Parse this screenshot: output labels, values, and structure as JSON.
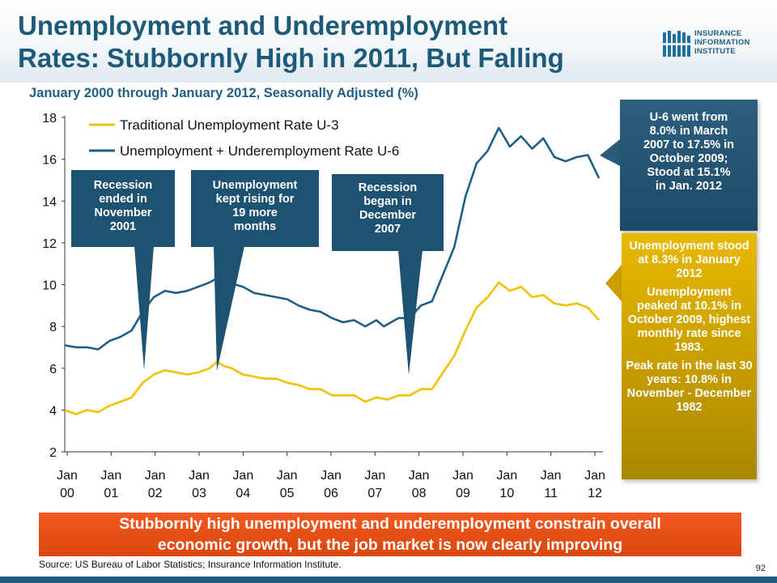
{
  "slide": {
    "title_line1": "Unemployment and Underemployment",
    "title_line2": "Rates: Stubbornly High in 2011, But Falling",
    "subtitle": "January 2000 through January 2012, Seasonally Adjusted (%)",
    "logo": {
      "line1": "INSURANCE",
      "line2": "INFORMATION",
      "line3": "INSTITUTE"
    },
    "banner_line1": "Stubbornly high unemployment and underemployment constrain overall",
    "banner_line2": "economic growth, but the job market is now clearly improving",
    "source": "Source: US Bureau of Labor Statistics; Insurance Information Institute.",
    "page_number": "92"
  },
  "callouts": {
    "recession2001": {
      "l1": "Recession",
      "l2": "ended in",
      "l3": "November",
      "l4": "2001"
    },
    "rising": {
      "l1": "Unemployment",
      "l2": "kept rising for",
      "l3": "19 more",
      "l4": "months"
    },
    "recession2007": {
      "l1": "Recession",
      "l2": "began in",
      "l3": "December",
      "l4": "2007"
    },
    "u6note": {
      "l1": "U-6 went from",
      "l2": "8.0% in March",
      "l3": "2007 to 17.5% in",
      "l4": "October 2009;",
      "l5": "Stood at 15.1%",
      "l6": "in Jan. 2012"
    },
    "u3note": {
      "p1": "Unemployment stood at 8.3% in January 2012",
      "p2": "Unemployment peaked at 10.1% in October 2009, highest monthly rate since 1983.",
      "p3": "Peak rate in the last 30 years: 10.8% in November - December 1982"
    }
  },
  "colors": {
    "u3": "#f2c100",
    "u6": "#1f5f85",
    "callout_blue": "#1e5272",
    "banner": "#e9501a"
  },
  "chart_data": {
    "type": "line",
    "y_ticks": [
      "2",
      "4",
      "6",
      "8",
      "10",
      "12",
      "14",
      "16",
      "18"
    ],
    "ylim": [
      2,
      18
    ],
    "x_ticks": [
      {
        "top": "Jan",
        "bottom": "00"
      },
      {
        "top": "Jan",
        "bottom": "01"
      },
      {
        "top": "Jan",
        "bottom": "02"
      },
      {
        "top": "Jan",
        "bottom": "03"
      },
      {
        "top": "Jan",
        "bottom": "04"
      },
      {
        "top": "Jan",
        "bottom": "05"
      },
      {
        "top": "Jan",
        "bottom": "06"
      },
      {
        "top": "Jan",
        "bottom": "07"
      },
      {
        "top": "Jan",
        "bottom": "08"
      },
      {
        "top": "Jan",
        "bottom": "09"
      },
      {
        "top": "Jan",
        "bottom": "10"
      },
      {
        "top": "Jan",
        "bottom": "11"
      },
      {
        "top": "Jan",
        "bottom": "12"
      }
    ],
    "x_range": [
      "2000-01",
      "2012-01"
    ],
    "legend_placement": "top-left",
    "grid": false,
    "series": [
      {
        "name": "Traditional Unemployment Rate U-3",
        "points": [
          [
            "2000-01",
            4.0
          ],
          [
            "2000-04",
            3.8
          ],
          [
            "2000-07",
            4.0
          ],
          [
            "2000-10",
            3.9
          ],
          [
            "2001-01",
            4.2
          ],
          [
            "2001-04",
            4.4
          ],
          [
            "2001-07",
            4.6
          ],
          [
            "2001-10",
            5.3
          ],
          [
            "2002-01",
            5.7
          ],
          [
            "2002-04",
            5.9
          ],
          [
            "2002-07",
            5.8
          ],
          [
            "2002-10",
            5.7
          ],
          [
            "2003-01",
            5.8
          ],
          [
            "2003-04",
            6.0
          ],
          [
            "2003-06",
            6.3
          ],
          [
            "2003-08",
            6.1
          ],
          [
            "2003-10",
            6.0
          ],
          [
            "2004-01",
            5.7
          ],
          [
            "2004-04",
            5.6
          ],
          [
            "2004-07",
            5.5
          ],
          [
            "2004-10",
            5.5
          ],
          [
            "2005-01",
            5.3
          ],
          [
            "2005-04",
            5.2
          ],
          [
            "2005-07",
            5.0
          ],
          [
            "2005-10",
            5.0
          ],
          [
            "2006-01",
            4.7
          ],
          [
            "2006-04",
            4.7
          ],
          [
            "2006-07",
            4.7
          ],
          [
            "2006-10",
            4.4
          ],
          [
            "2007-01",
            4.6
          ],
          [
            "2007-04",
            4.5
          ],
          [
            "2007-07",
            4.7
          ],
          [
            "2007-10",
            4.7
          ],
          [
            "2008-01",
            5.0
          ],
          [
            "2008-04",
            5.0
          ],
          [
            "2008-07",
            5.8
          ],
          [
            "2008-10",
            6.6
          ],
          [
            "2009-01",
            7.8
          ],
          [
            "2009-04",
            8.9
          ],
          [
            "2009-07",
            9.4
          ],
          [
            "2009-10",
            10.1
          ],
          [
            "2010-01",
            9.7
          ],
          [
            "2010-04",
            9.9
          ],
          [
            "2010-07",
            9.4
          ],
          [
            "2010-10",
            9.5
          ],
          [
            "2011-01",
            9.1
          ],
          [
            "2011-04",
            9.0
          ],
          [
            "2011-07",
            9.1
          ],
          [
            "2011-10",
            8.9
          ],
          [
            "2012-01",
            8.3
          ]
        ]
      },
      {
        "name": "Unemployment + Underemployment Rate U-6",
        "points": [
          [
            "2000-01",
            7.1
          ],
          [
            "2000-04",
            7.0
          ],
          [
            "2000-07",
            7.0
          ],
          [
            "2000-10",
            6.9
          ],
          [
            "2001-01",
            7.3
          ],
          [
            "2001-04",
            7.5
          ],
          [
            "2001-07",
            7.8
          ],
          [
            "2001-10",
            8.7
          ],
          [
            "2002-01",
            9.4
          ],
          [
            "2002-04",
            9.7
          ],
          [
            "2002-07",
            9.6
          ],
          [
            "2002-10",
            9.7
          ],
          [
            "2003-01",
            9.9
          ],
          [
            "2003-04",
            10.1
          ],
          [
            "2003-06",
            10.3
          ],
          [
            "2003-09",
            10.1
          ],
          [
            "2004-01",
            9.9
          ],
          [
            "2004-04",
            9.6
          ],
          [
            "2004-07",
            9.5
          ],
          [
            "2004-10",
            9.4
          ],
          [
            "2005-01",
            9.3
          ],
          [
            "2005-04",
            9.0
          ],
          [
            "2005-07",
            8.8
          ],
          [
            "2005-10",
            8.7
          ],
          [
            "2006-01",
            8.4
          ],
          [
            "2006-04",
            8.2
          ],
          [
            "2006-07",
            8.3
          ],
          [
            "2006-10",
            8.0
          ],
          [
            "2007-01",
            8.3
          ],
          [
            "2007-03",
            8.0
          ],
          [
            "2007-07",
            8.4
          ],
          [
            "2007-10",
            8.4
          ],
          [
            "2008-01",
            9.0
          ],
          [
            "2008-04",
            9.2
          ],
          [
            "2008-07",
            10.5
          ],
          [
            "2008-10",
            11.8
          ],
          [
            "2009-01",
            14.2
          ],
          [
            "2009-04",
            15.8
          ],
          [
            "2009-07",
            16.4
          ],
          [
            "2009-10",
            17.5
          ],
          [
            "2010-01",
            16.6
          ],
          [
            "2010-04",
            17.1
          ],
          [
            "2010-07",
            16.5
          ],
          [
            "2010-10",
            17.0
          ],
          [
            "2011-01",
            16.1
          ],
          [
            "2011-04",
            15.9
          ],
          [
            "2011-07",
            16.1
          ],
          [
            "2011-10",
            16.2
          ],
          [
            "2012-01",
            15.1
          ]
        ]
      }
    ]
  }
}
